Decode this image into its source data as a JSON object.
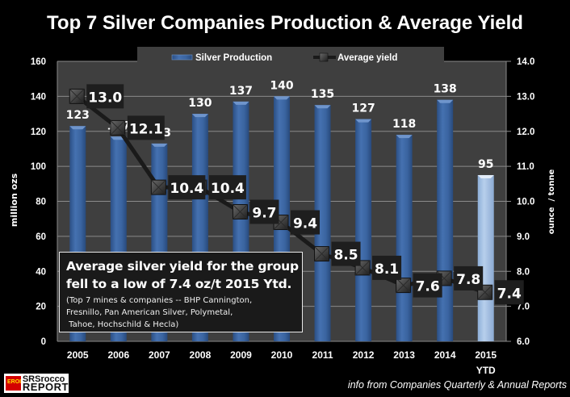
{
  "chart_data": {
    "type": "bar+line",
    "title": "Top 7 Silver Companies Production & Average Yield",
    "categories": [
      "2005",
      "2006",
      "2007",
      "2008",
      "2009",
      "2010",
      "2011",
      "2012",
      "2013",
      "2014",
      "2015\nYTD"
    ],
    "category_labels": [
      {
        "line1": "2005",
        "line2": ""
      },
      {
        "line1": "2006",
        "line2": ""
      },
      {
        "line1": "2007",
        "line2": ""
      },
      {
        "line1": "2008",
        "line2": ""
      },
      {
        "line1": "2009",
        "line2": ""
      },
      {
        "line1": "2010",
        "line2": ""
      },
      {
        "line1": "2011",
        "line2": ""
      },
      {
        "line1": "2012",
        "line2": ""
      },
      {
        "line1": "2013",
        "line2": ""
      },
      {
        "line1": "2014",
        "line2": ""
      },
      {
        "line1": "2015",
        "line2": "YTD"
      }
    ],
    "series": [
      {
        "name": "Silver Production",
        "type": "bar",
        "axis": "left",
        "values": [
          123,
          117,
          113,
          130,
          137,
          140,
          135,
          127,
          118,
          138,
          95
        ],
        "color": "#3a64a0",
        "highlight_last_color": "#a8c4e6"
      },
      {
        "name": "Average yield",
        "type": "line",
        "axis": "right",
        "values": [
          13.0,
          12.1,
          10.4,
          10.4,
          9.7,
          9.4,
          8.5,
          8.1,
          7.6,
          7.8,
          7.4
        ],
        "labels": [
          "13.0",
          "12.1",
          "10.4",
          "10.4",
          "9.7",
          "9.4",
          "8.5",
          "8.1",
          "7.6",
          "7.8",
          "7.4"
        ],
        "color": "#222222"
      }
    ],
    "ylabel": "million ozs",
    "ylabel_right": "ounce  / tonne",
    "ylim": [
      0,
      160
    ],
    "yticks": [
      "0",
      "20",
      "40",
      "60",
      "80",
      "100",
      "120",
      "140",
      "160"
    ],
    "ylim_right": [
      6.0,
      14.0
    ],
    "yticks_right": [
      "6.0",
      "7.0",
      "8.0",
      "9.0",
      "10.0",
      "11.0",
      "12.0",
      "13.0",
      "14.0"
    ],
    "grid": true,
    "legend_position": "top-center",
    "legend": [
      {
        "label": "Silver Production",
        "type": "bar"
      },
      {
        "label": "Average yield",
        "type": "line-marker"
      }
    ]
  },
  "annotation": {
    "main_line1": "Average silver yield for the group",
    "main_line2": "fell to a low of 7.4 oz/t 2015 Ytd.",
    "sub": "(Top 7 mines & companies -- BHP Cannington,\nFresnillo, Pan American Silver, Polymetal,\n Tahoe, Hochschild & Hecla)"
  },
  "footer": {
    "logo_line1": "SRSrocco",
    "logo_line2": "REPORT",
    "logo_badge": "EROI",
    "source": "info from Companies Quarterly & Annual Reports"
  },
  "colors": {
    "background": "#000000",
    "plot_background": "#3f3f3f",
    "gridline": "#8a8a8a",
    "bar": "#3a64a0",
    "bar_highlight": "#a8c4e6",
    "label_box": "#1e1e1e"
  }
}
